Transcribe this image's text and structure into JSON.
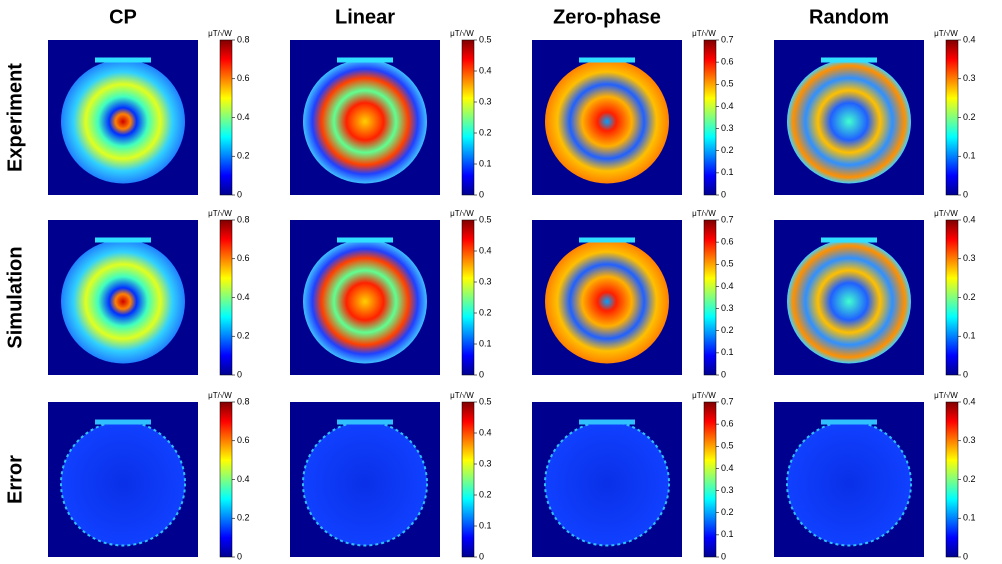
{
  "columns": [
    "CP",
    "Linear",
    "Zero-phase",
    "Random"
  ],
  "rows": [
    "Experiment",
    "Simulation",
    "Error"
  ],
  "chart_data": [
    {
      "type": "heatmap",
      "colorbar_label": "μT/√W",
      "clim": [
        0,
        0.8
      ],
      "cticks": [
        0,
        0.2,
        0.4,
        0.6,
        0.8
      ]
    },
    {
      "type": "heatmap",
      "colorbar_label": "μT/√W",
      "clim": [
        0,
        0.5
      ],
      "cticks": [
        0,
        0.1,
        0.2,
        0.3,
        0.4,
        0.5
      ]
    },
    {
      "type": "heatmap",
      "colorbar_label": "μT/√W",
      "clim": [
        0,
        0.7
      ],
      "cticks": [
        0,
        0.1,
        0.2,
        0.3,
        0.4,
        0.5,
        0.6,
        0.7
      ]
    },
    {
      "type": "heatmap",
      "colorbar_label": "μT/√W",
      "clim": [
        0,
        0.4
      ],
      "cticks": [
        0,
        0.1,
        0.2,
        0.3,
        0.4
      ]
    },
    {
      "type": "heatmap",
      "colorbar_label": "μT/√W",
      "clim": [
        0,
        0.8
      ],
      "cticks": [
        0,
        0.2,
        0.4,
        0.6,
        0.8
      ]
    },
    {
      "type": "heatmap",
      "colorbar_label": "μT/√W",
      "clim": [
        0,
        0.5
      ],
      "cticks": [
        0,
        0.1,
        0.2,
        0.3,
        0.4,
        0.5
      ]
    },
    {
      "type": "heatmap",
      "colorbar_label": "μT/√W",
      "clim": [
        0,
        0.7
      ],
      "cticks": [
        0,
        0.1,
        0.2,
        0.3,
        0.4,
        0.5,
        0.6,
        0.7
      ]
    },
    {
      "type": "heatmap",
      "colorbar_label": "μT/√W",
      "clim": [
        0,
        0.4
      ],
      "cticks": [
        0,
        0.1,
        0.2,
        0.3,
        0.4
      ]
    },
    {
      "type": "heatmap",
      "colorbar_label": "μT/√W",
      "clim": [
        0,
        0.8
      ],
      "cticks": [
        0,
        0.2,
        0.4,
        0.6,
        0.8
      ]
    },
    {
      "type": "heatmap",
      "colorbar_label": "μT/√W",
      "clim": [
        0,
        0.5
      ],
      "cticks": [
        0,
        0.1,
        0.2,
        0.3,
        0.4,
        0.5
      ]
    },
    {
      "type": "heatmap",
      "colorbar_label": "μT/√W",
      "clim": [
        0,
        0.7
      ],
      "cticks": [
        0,
        0.1,
        0.2,
        0.3,
        0.4,
        0.5,
        0.6,
        0.7
      ]
    },
    {
      "type": "heatmap",
      "colorbar_label": "μT/√W",
      "clim": [
        0,
        0.4
      ],
      "cticks": [
        0,
        0.1,
        0.2,
        0.3,
        0.4
      ]
    }
  ]
}
